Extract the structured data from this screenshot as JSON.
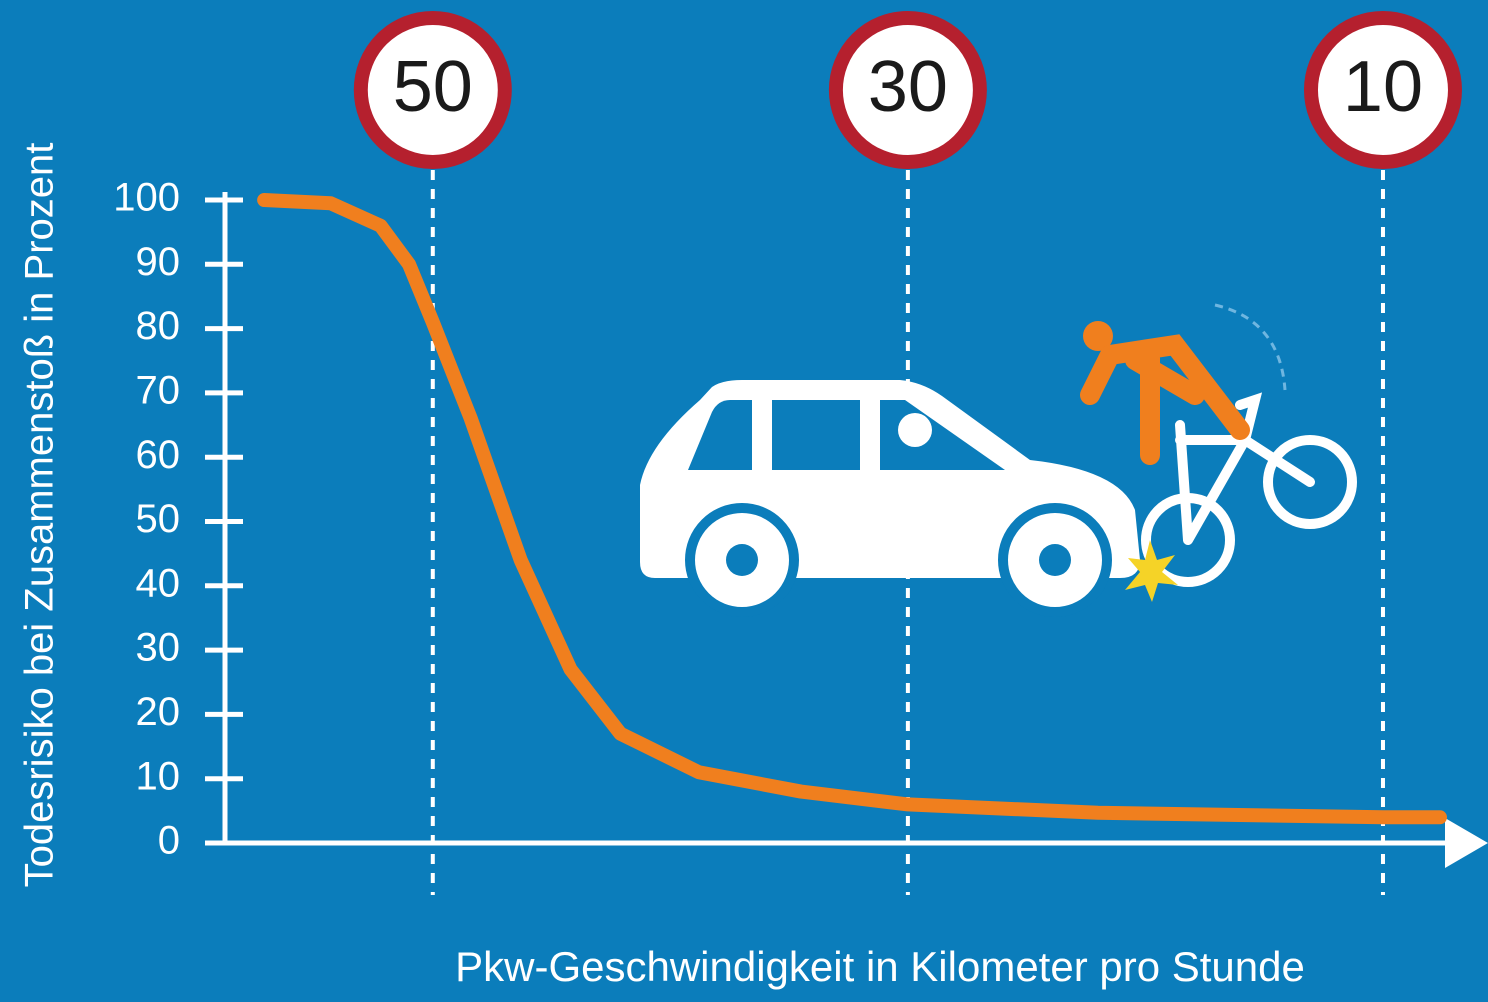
{
  "chart_data": {
    "type": "line",
    "y_axis_label": "Todesrisiko bei Zusammenstoß in Prozent",
    "x_axis_label": "Pkw-Geschwindigkeit in Kilometer pro Stunde",
    "x": [
      57.1,
      54.3,
      52.2,
      51,
      50,
      48.4,
      46.3,
      44.2,
      42.1,
      38.8,
      34.5,
      30,
      22,
      10,
      7.6
    ],
    "values": [
      100,
      99.5,
      96,
      90,
      81,
      66,
      44,
      27,
      17,
      11,
      8,
      6,
      4.7,
      4,
      4
    ],
    "color": "#f07f1e",
    "xlim": [
      59,
      6
    ],
    "xticks": [
      50,
      30,
      10
    ],
    "ylim": [
      0,
      100
    ],
    "yticks": [
      0,
      10,
      20,
      30,
      40,
      50,
      60,
      70,
      80,
      90,
      100
    ]
  }
}
